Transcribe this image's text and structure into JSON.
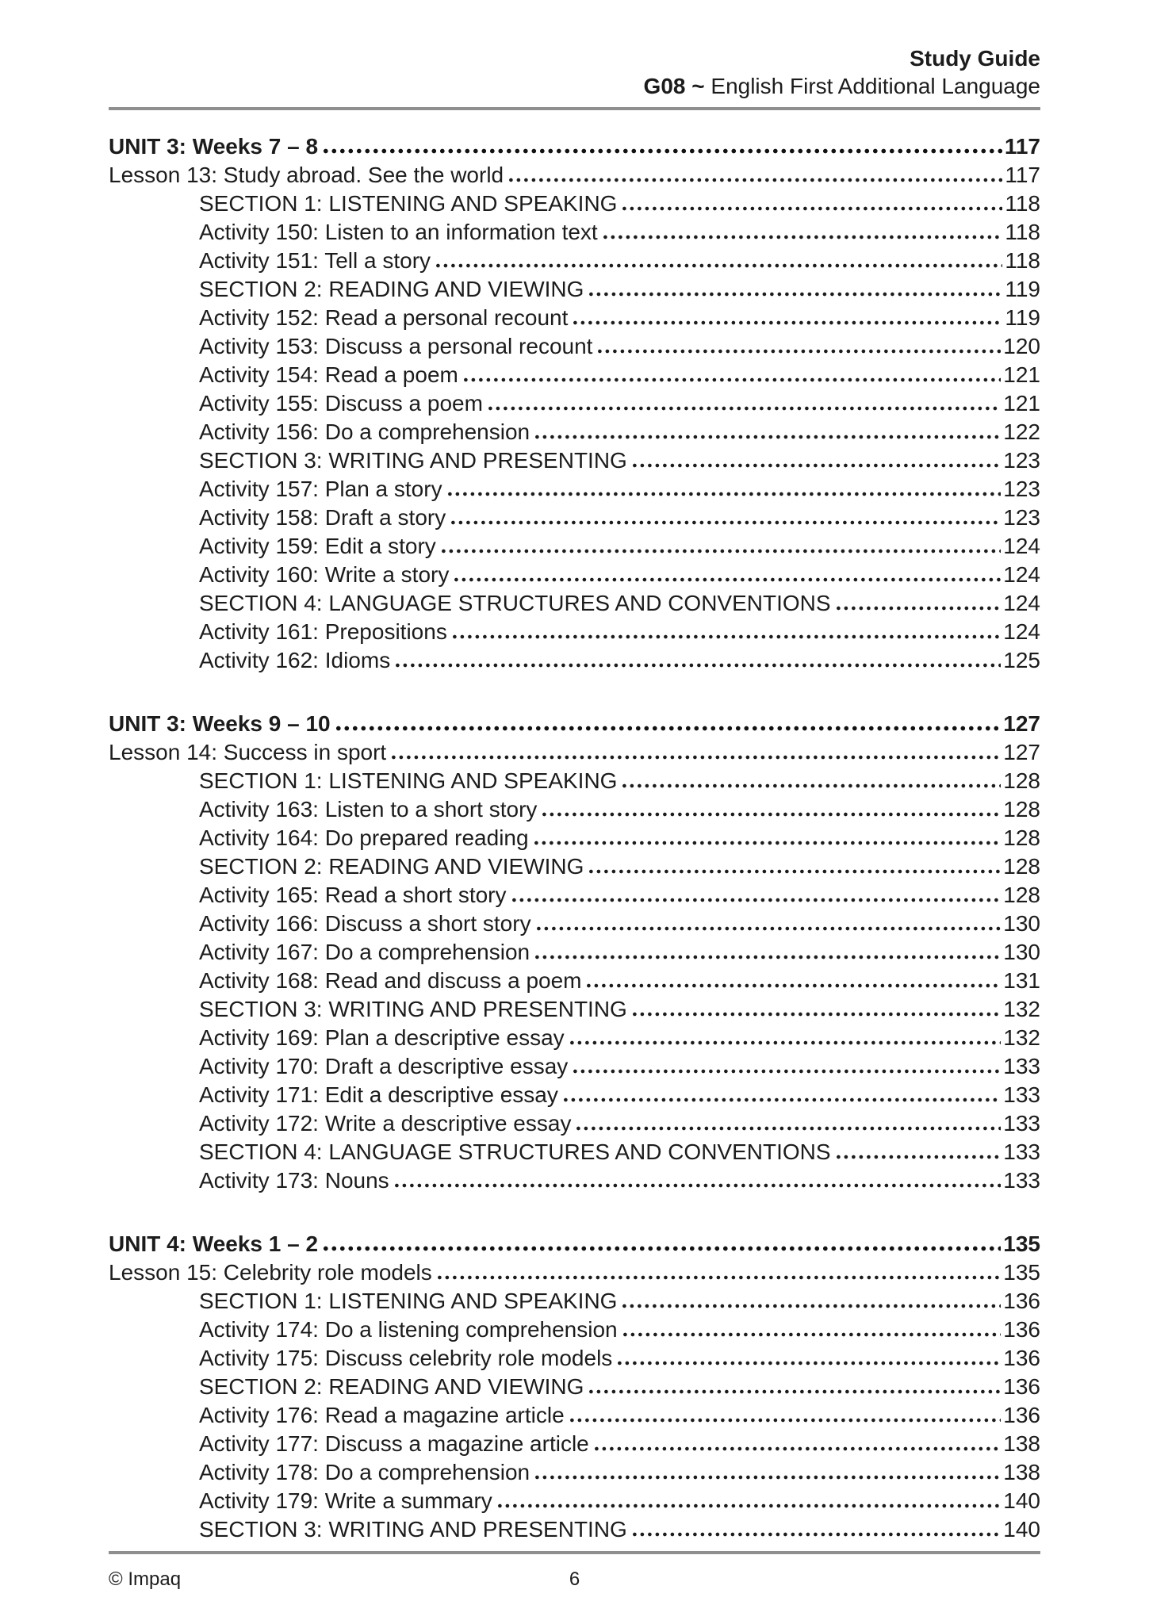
{
  "header": {
    "title": "Study Guide",
    "subtitle": {
      "bold": "G08 ~",
      "rest": " English First Additional Language"
    }
  },
  "toc": {
    "blocks": [
      {
        "unit": {
          "label": "UNIT 3: Weeks 7 – 8",
          "page": "117"
        },
        "entries": [
          {
            "label": "Lesson 13: Study abroad. See the world",
            "page": "117",
            "level": "lesson"
          },
          {
            "label": "SECTION 1: LISTENING AND SPEAKING",
            "page": "118",
            "level": "sub"
          },
          {
            "label": "Activity 150: Listen to an information text",
            "page": "118",
            "level": "sub"
          },
          {
            "label": "Activity 151: Tell a story",
            "page": "118",
            "level": "sub"
          },
          {
            "label": "SECTION 2: READING AND VIEWING",
            "page": "119",
            "level": "sub"
          },
          {
            "label": "Activity 152: Read a personal recount",
            "page": "119",
            "level": "sub"
          },
          {
            "label": "Activity 153: Discuss a personal recount",
            "page": "120",
            "level": "sub"
          },
          {
            "label": "Activity 154: Read a poem",
            "page": "121",
            "level": "sub"
          },
          {
            "label": "Activity 155: Discuss a poem",
            "page": "121",
            "level": "sub"
          },
          {
            "label": "Activity 156: Do a comprehension",
            "page": "122",
            "level": "sub"
          },
          {
            "label": "SECTION 3: WRITING AND PRESENTING",
            "page": "123",
            "level": "sub"
          },
          {
            "label": "Activity 157: Plan a story",
            "page": "123",
            "level": "sub"
          },
          {
            "label": "Activity 158: Draft a story",
            "page": "123",
            "level": "sub"
          },
          {
            "label": "Activity 159: Edit a story",
            "page": "124",
            "level": "sub"
          },
          {
            "label": "Activity 160: Write a story",
            "page": "124",
            "level": "sub"
          },
          {
            "label": "SECTION 4: LANGUAGE STRUCTURES AND CONVENTIONS",
            "page": "124",
            "level": "sub"
          },
          {
            "label": "Activity 161: Prepositions",
            "page": "124",
            "level": "sub"
          },
          {
            "label": "Activity 162: Idioms",
            "page": "125",
            "level": "sub"
          }
        ]
      },
      {
        "unit": {
          "label": "UNIT 3: Weeks 9 – 10",
          "page": "127"
        },
        "entries": [
          {
            "label": "Lesson 14: Success in sport",
            "page": "127",
            "level": "lesson"
          },
          {
            "label": "SECTION 1: LISTENING AND SPEAKING",
            "page": "128",
            "level": "sub"
          },
          {
            "label": "Activity 163: Listen to a short story",
            "page": "128",
            "level": "sub"
          },
          {
            "label": "Activity 164: Do prepared reading",
            "page": "128",
            "level": "sub"
          },
          {
            "label": "SECTION 2: READING AND VIEWING",
            "page": "128",
            "level": "sub"
          },
          {
            "label": "Activity 165: Read a short story",
            "page": "128",
            "level": "sub"
          },
          {
            "label": "Activity 166: Discuss a short story",
            "page": "130",
            "level": "sub"
          },
          {
            "label": "Activity 167: Do a comprehension",
            "page": "130",
            "level": "sub"
          },
          {
            "label": "Activity 168: Read and discuss a poem",
            "page": "131",
            "level": "sub"
          },
          {
            "label": "SECTION 3: WRITING AND PRESENTING",
            "page": "132",
            "level": "sub"
          },
          {
            "label": "Activity 169: Plan a descriptive essay",
            "page": "132",
            "level": "sub"
          },
          {
            "label": "Activity 170: Draft a descriptive essay",
            "page": "133",
            "level": "sub"
          },
          {
            "label": "Activity 171: Edit a descriptive essay",
            "page": "133",
            "level": "sub"
          },
          {
            "label": "Activity 172: Write a descriptive essay",
            "page": "133",
            "level": "sub"
          },
          {
            "label": "SECTION 4: LANGUAGE STRUCTURES AND CONVENTIONS",
            "page": "133",
            "level": "sub"
          },
          {
            "label": "Activity 173: Nouns",
            "page": "133",
            "level": "sub"
          }
        ]
      },
      {
        "unit": {
          "label": "UNIT 4: Weeks 1 – 2",
          "page": "135"
        },
        "entries": [
          {
            "label": "Lesson 15: Celebrity role models",
            "page": "135",
            "level": "lesson"
          },
          {
            "label": "SECTION 1: LISTENING AND SPEAKING",
            "page": "136",
            "level": "sub"
          },
          {
            "label": "Activity 174: Do a listening comprehension",
            "page": "136",
            "level": "sub"
          },
          {
            "label": "Activity 175: Discuss celebrity role models",
            "page": "136",
            "level": "sub"
          },
          {
            "label": "SECTION 2: READING AND VIEWING",
            "page": "136",
            "level": "sub"
          },
          {
            "label": "Activity 176: Read a magazine article",
            "page": "136",
            "level": "sub"
          },
          {
            "label": "Activity 177: Discuss a magazine article",
            "page": "138",
            "level": "sub"
          },
          {
            "label": "Activity 178: Do a comprehension",
            "page": "138",
            "level": "sub"
          },
          {
            "label": "Activity 179: Write a summary",
            "page": "140",
            "level": "sub"
          },
          {
            "label": "SECTION 3: WRITING AND PRESENTING",
            "page": "140",
            "level": "sub"
          }
        ]
      }
    ]
  },
  "footer": {
    "copyright": "© Impaq",
    "page_number": "6"
  }
}
